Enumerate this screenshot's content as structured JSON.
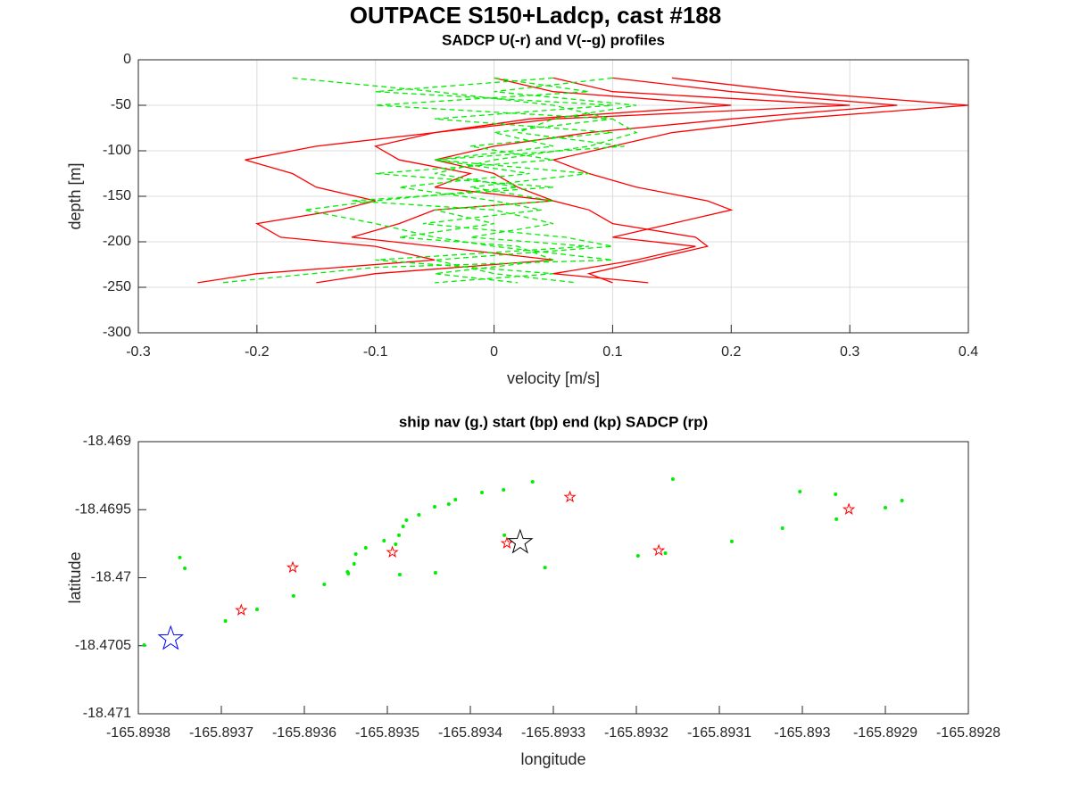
{
  "title": "OUTPACE S150+Ladcp, cast #188",
  "chart_data": [
    {
      "type": "line",
      "title": "SADCP U(-r) and V(--g) profiles",
      "xlabel": "velocity [m/s]",
      "ylabel": "depth [m]",
      "xlim": [
        -0.3,
        0.4
      ],
      "xticks": [
        -0.3,
        -0.2,
        -0.1,
        0,
        0.1,
        0.2,
        0.3,
        0.4
      ],
      "ylim": [
        -300,
        0
      ],
      "yticks": [
        -300,
        -250,
        -200,
        -150,
        -100,
        -50,
        0
      ],
      "grid": true,
      "series": [
        {
          "color": "#ff0000",
          "dash": false,
          "x": [
            0.15,
            0.25,
            0.4,
            0.25,
            0.15,
            0.1,
            0.05,
            0.08,
            0.12,
            0.18,
            0.2,
            0.15,
            0.1,
            0.17,
            0.12,
            0.05,
            0.13
          ],
          "values": [
            -20,
            -35,
            -50,
            -65,
            -80,
            -95,
            -110,
            -125,
            -140,
            -155,
            -165,
            -180,
            -195,
            -205,
            -220,
            -235,
            -245
          ]
        },
        {
          "color": "#ff0000",
          "dash": false,
          "x": [
            0.1,
            0.2,
            0.34,
            0.2,
            0.08,
            0.0,
            -0.05,
            0.0,
            0.02,
            0.05,
            0.08,
            0.1,
            0.17,
            0.18,
            0.13,
            0.08,
            0.1
          ],
          "values": [
            -20,
            -35,
            -50,
            -65,
            -80,
            -95,
            -110,
            -125,
            -140,
            -155,
            -165,
            -180,
            -195,
            -205,
            -220,
            -235,
            -245
          ]
        },
        {
          "color": "#ff0000",
          "dash": false,
          "x": [
            0.05,
            0.1,
            0.3,
            0.05,
            -0.05,
            -0.15,
            -0.21,
            -0.17,
            -0.15,
            -0.1,
            -0.13,
            -0.2,
            -0.18,
            -0.1,
            -0.05,
            -0.2,
            -0.25
          ],
          "values": [
            -20,
            -35,
            -50,
            -65,
            -80,
            -95,
            -110,
            -125,
            -140,
            -155,
            -165,
            -180,
            -195,
            -205,
            -220,
            -235,
            -245
          ]
        },
        {
          "color": "#ff0000",
          "dash": false,
          "x": [
            0.0,
            0.05,
            0.2,
            0.03,
            -0.05,
            -0.1,
            -0.08,
            -0.02,
            -0.05,
            0.05,
            -0.05,
            -0.08,
            -0.12,
            -0.05,
            0.05,
            -0.1,
            -0.15
          ],
          "values": [
            -20,
            -35,
            -50,
            -65,
            -80,
            -95,
            -110,
            -125,
            -140,
            -155,
            -165,
            -180,
            -195,
            -205,
            -220,
            -235,
            -245
          ]
        },
        {
          "color": "#00ee00",
          "dash": true,
          "x": [
            -0.17,
            -0.05,
            0.05,
            0.1,
            0.12,
            0.08,
            0.0,
            -0.05,
            0.02,
            -0.1,
            -0.16,
            -0.1,
            -0.05,
            0.0,
            0.1,
            -0.1,
            -0.23
          ],
          "values": [
            -20,
            -35,
            -50,
            -65,
            -80,
            -95,
            -110,
            -125,
            -140,
            -155,
            -165,
            -180,
            -195,
            -205,
            -220,
            -228,
            -245
          ]
        },
        {
          "color": "#00ee00",
          "dash": true,
          "x": [
            0.0,
            0.08,
            -0.1,
            0.1,
            0.0,
            0.05,
            -0.05,
            0.08,
            -0.02,
            0.05,
            -0.05,
            0.0,
            -0.08,
            0.02,
            0.05,
            -0.05,
            0.02
          ],
          "values": [
            -20,
            -35,
            -50,
            -65,
            -80,
            -95,
            -110,
            -125,
            -140,
            -155,
            -165,
            -180,
            -195,
            -205,
            -220,
            -235,
            -245
          ]
        },
        {
          "color": "#00ee00",
          "dash": true,
          "x": [
            0.05,
            -0.1,
            0.1,
            -0.05,
            0.1,
            -0.02,
            0.05,
            -0.1,
            0.05,
            -0.12,
            0.0,
            0.05,
            -0.02,
            0.08,
            -0.1,
            0.05,
            -0.05
          ],
          "values": [
            -20,
            -35,
            -50,
            -65,
            -80,
            -95,
            -110,
            -125,
            -140,
            -155,
            -165,
            -180,
            -195,
            -205,
            -220,
            -235,
            -245
          ]
        },
        {
          "color": "#00ee00",
          "dash": true,
          "x": [
            0.1,
            0.0,
            0.12,
            0.05,
            0.02,
            0.11,
            -0.05,
            0.03,
            -0.08,
            0.0,
            0.04,
            -0.06,
            0.06,
            0.1,
            -0.05,
            0.0,
            0.07
          ],
          "values": [
            -20,
            -35,
            -50,
            -65,
            -80,
            -95,
            -110,
            -125,
            -140,
            -155,
            -165,
            -180,
            -195,
            -205,
            -220,
            -235,
            -245
          ]
        }
      ]
    },
    {
      "type": "scatter",
      "title": "ship nav (g.) start (bp) end (kp) SADCP (rp)",
      "xlabel": "longitude",
      "ylabel": "latitude",
      "xlim": [
        -165.8938,
        -165.8928
      ],
      "xticks": [
        -165.8938,
        -165.8937,
        -165.8936,
        -165.8935,
        -165.8934,
        -165.8933,
        -165.8932,
        -165.8931,
        -165.893,
        -165.8929,
        -165.8928
      ],
      "ylim": [
        -18.471,
        -18.469
      ],
      "yticks": [
        -18.471,
        -18.4705,
        -18.47,
        -18.4695,
        -18.469
      ],
      "grid": false,
      "series": [
        {
          "color": "#00ee00",
          "marker": "dot",
          "x": [
            -165.893793,
            -165.89375,
            -165.893744,
            -165.893695,
            -165.893657,
            -165.893613,
            -165.893576,
            -165.893547,
            -165.893548,
            -165.89354,
            -165.893538,
            -165.893526,
            -165.893504,
            -165.89349,
            -165.893486,
            -165.893481,
            -165.893477,
            -165.893462,
            -165.893443,
            -165.893426,
            -165.893418,
            -165.893386,
            -165.89336,
            -165.893325,
            -165.893442,
            -165.893485,
            -165.89331,
            -165.893359,
            -165.893198,
            -165.893165,
            -165.893156,
            -165.893085,
            -165.893024,
            -165.893003,
            -165.89296,
            -165.892959,
            -165.8929,
            -165.89288
          ],
          "values": [
            -18.470495,
            -18.469852,
            -18.469931,
            -18.470318,
            -18.470233,
            -18.470134,
            -18.470049,
            -18.46997,
            -18.469957,
            -18.469898,
            -18.469826,
            -18.46978,
            -18.469728,
            -18.469754,
            -18.469688,
            -18.469623,
            -18.469577,
            -18.469538,
            -18.469479,
            -18.469459,
            -18.469426,
            -18.469374,
            -18.469354,
            -18.469295,
            -18.469964,
            -18.469977,
            -18.469925,
            -18.469688,
            -18.469839,
            -18.46982,
            -18.469275,
            -18.469734,
            -18.469636,
            -18.469367,
            -18.469387,
            -18.46957,
            -18.469485,
            -18.469433
          ]
        },
        {
          "color": "#ff0000",
          "marker": "star-small",
          "x": [
            -165.893676,
            -165.893614,
            -165.893494,
            -165.893356,
            -165.89328,
            -165.893173,
            -165.892944
          ],
          "values": [
            -18.470239,
            -18.469925,
            -18.469813,
            -18.469747,
            -18.469407,
            -18.4698,
            -18.469498
          ]
        },
        {
          "color": "#0000ff",
          "marker": "star",
          "x": [
            -165.893761
          ],
          "values": [
            -18.470449
          ]
        },
        {
          "color": "#000000",
          "marker": "star",
          "x": [
            -165.89334
          ],
          "values": [
            -18.469741
          ]
        }
      ]
    }
  ]
}
